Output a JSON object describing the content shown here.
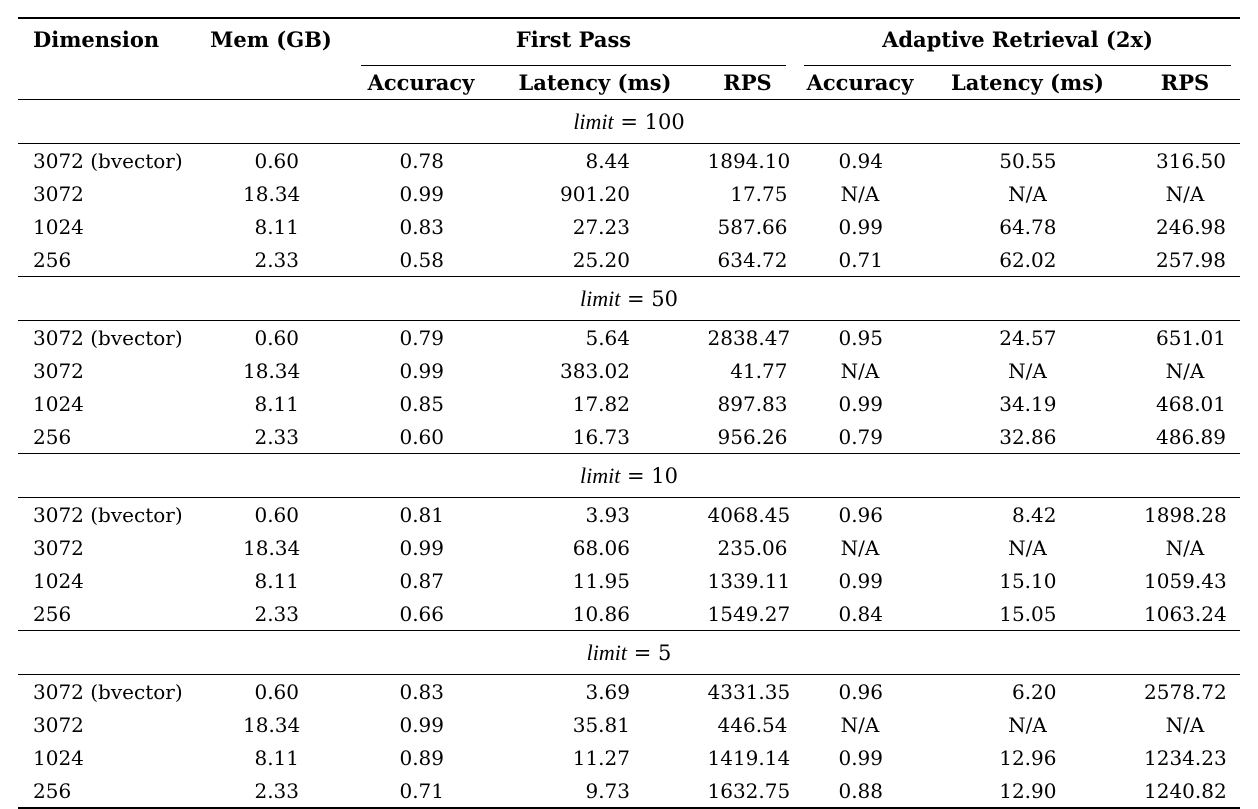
{
  "colors": {
    "background": "#ffffff",
    "text": "#000000",
    "rule": "#000000"
  },
  "table": {
    "header": {
      "dimension": "Dimension",
      "mem": "Mem (GB)",
      "groups": [
        {
          "label": "First Pass",
          "cols": [
            "Accuracy",
            "Latency (ms)",
            "RPS"
          ]
        },
        {
          "label": "Adaptive Retrieval (2x)",
          "cols": [
            "Accuracy",
            "Latency (ms)",
            "RPS"
          ]
        }
      ]
    },
    "na_text": "N/A",
    "sections": [
      {
        "limit_var": "limit",
        "limit_eq": "=",
        "limit_value": "100",
        "rows": [
          {
            "dimension": "3072 (bvector)",
            "mem": "0.60",
            "fp_accuracy": "0.78",
            "fp_latency": "8.44",
            "fp_rps": "1894.10",
            "ar_accuracy": "0.94",
            "ar_latency": "50.55",
            "ar_rps": "316.50"
          },
          {
            "dimension": "3072",
            "mem": "18.34",
            "fp_accuracy": "0.99",
            "fp_latency": "901.20",
            "fp_rps": "17.75",
            "ar_accuracy": "N/A",
            "ar_latency": "N/A",
            "ar_rps": "N/A"
          },
          {
            "dimension": "1024",
            "mem": "8.11",
            "fp_accuracy": "0.83",
            "fp_latency": "27.23",
            "fp_rps": "587.66",
            "ar_accuracy": "0.99",
            "ar_latency": "64.78",
            "ar_rps": "246.98"
          },
          {
            "dimension": "256",
            "mem": "2.33",
            "fp_accuracy": "0.58",
            "fp_latency": "25.20",
            "fp_rps": "634.72",
            "ar_accuracy": "0.71",
            "ar_latency": "62.02",
            "ar_rps": "257.98"
          }
        ]
      },
      {
        "limit_var": "limit",
        "limit_eq": "=",
        "limit_value": "50",
        "rows": [
          {
            "dimension": "3072 (bvector)",
            "mem": "0.60",
            "fp_accuracy": "0.79",
            "fp_latency": "5.64",
            "fp_rps": "2838.47",
            "ar_accuracy": "0.95",
            "ar_latency": "24.57",
            "ar_rps": "651.01"
          },
          {
            "dimension": "3072",
            "mem": "18.34",
            "fp_accuracy": "0.99",
            "fp_latency": "383.02",
            "fp_rps": "41.77",
            "ar_accuracy": "N/A",
            "ar_latency": "N/A",
            "ar_rps": "N/A"
          },
          {
            "dimension": "1024",
            "mem": "8.11",
            "fp_accuracy": "0.85",
            "fp_latency": "17.82",
            "fp_rps": "897.83",
            "ar_accuracy": "0.99",
            "ar_latency": "34.19",
            "ar_rps": "468.01"
          },
          {
            "dimension": "256",
            "mem": "2.33",
            "fp_accuracy": "0.60",
            "fp_latency": "16.73",
            "fp_rps": "956.26",
            "ar_accuracy": "0.79",
            "ar_latency": "32.86",
            "ar_rps": "486.89"
          }
        ]
      },
      {
        "limit_var": "limit",
        "limit_eq": "=",
        "limit_value": "10",
        "rows": [
          {
            "dimension": "3072 (bvector)",
            "mem": "0.60",
            "fp_accuracy": "0.81",
            "fp_latency": "3.93",
            "fp_rps": "4068.45",
            "ar_accuracy": "0.96",
            "ar_latency": "8.42",
            "ar_rps": "1898.28"
          },
          {
            "dimension": "3072",
            "mem": "18.34",
            "fp_accuracy": "0.99",
            "fp_latency": "68.06",
            "fp_rps": "235.06",
            "ar_accuracy": "N/A",
            "ar_latency": "N/A",
            "ar_rps": "N/A"
          },
          {
            "dimension": "1024",
            "mem": "8.11",
            "fp_accuracy": "0.87",
            "fp_latency": "11.95",
            "fp_rps": "1339.11",
            "ar_accuracy": "0.99",
            "ar_latency": "15.10",
            "ar_rps": "1059.43"
          },
          {
            "dimension": "256",
            "mem": "2.33",
            "fp_accuracy": "0.66",
            "fp_latency": "10.86",
            "fp_rps": "1549.27",
            "ar_accuracy": "0.84",
            "ar_latency": "15.05",
            "ar_rps": "1063.24"
          }
        ]
      },
      {
        "limit_var": "limit",
        "limit_eq": "=",
        "limit_value": "5",
        "rows": [
          {
            "dimension": "3072 (bvector)",
            "mem": "0.60",
            "fp_accuracy": "0.83",
            "fp_latency": "3.69",
            "fp_rps": "4331.35",
            "ar_accuracy": "0.96",
            "ar_latency": "6.20",
            "ar_rps": "2578.72"
          },
          {
            "dimension": "3072",
            "mem": "18.34",
            "fp_accuracy": "0.99",
            "fp_latency": "35.81",
            "fp_rps": "446.54",
            "ar_accuracy": "N/A",
            "ar_latency": "N/A",
            "ar_rps": "N/A"
          },
          {
            "dimension": "1024",
            "mem": "8.11",
            "fp_accuracy": "0.89",
            "fp_latency": "11.27",
            "fp_rps": "1419.14",
            "ar_accuracy": "0.99",
            "ar_latency": "12.96",
            "ar_rps": "1234.23"
          },
          {
            "dimension": "256",
            "mem": "2.33",
            "fp_accuracy": "0.71",
            "fp_latency": "9.73",
            "fp_rps": "1632.75",
            "ar_accuracy": "0.88",
            "ar_latency": "12.90",
            "ar_rps": "1240.82"
          }
        ]
      }
    ]
  }
}
